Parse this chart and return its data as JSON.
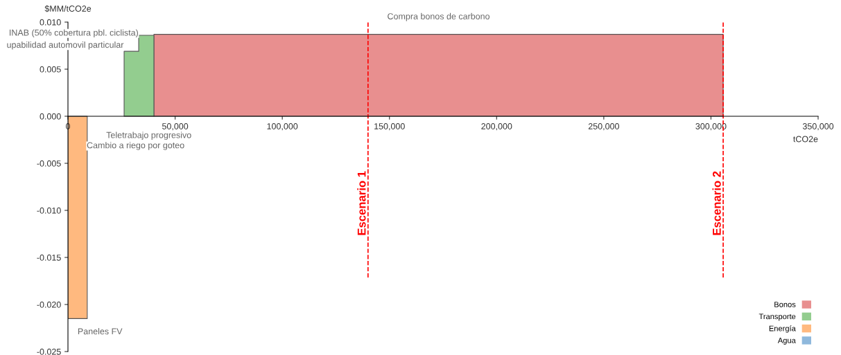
{
  "chart_data": {
    "type": "area",
    "xlabel": "tCO2e",
    "ylabel": "$MM/tCO2e",
    "series": [
      {
        "name": "Bonos",
        "color": "#e88f8f",
        "x": [
          40100,
          305700
        ],
        "values": [
          0.0087,
          0.0087
        ]
      },
      {
        "name": "Transporte",
        "color": "#93cd8f",
        "x": [
          26200,
          33000,
          33000,
          40100
        ],
        "values": [
          0.0069,
          0.0069,
          0.0086,
          0.0086
        ]
      },
      {
        "name": "Energía",
        "color": "#ffb97f",
        "x": [
          0,
          9000
        ],
        "values": [
          -0.0215,
          -0.0215
        ]
      },
      {
        "name": "Agua",
        "color": "#8fb8dc"
      }
    ],
    "xlim": [
      0,
      350000
    ],
    "xticks": [
      0,
      {
        "value": 50000,
        "label": "50,000"
      },
      {
        "value": 100000,
        "label": "100,000"
      },
      {
        "value": 150000,
        "label": "150,000"
      },
      {
        "value": 200000,
        "label": "200,000"
      },
      {
        "value": 250000,
        "label": "250,000"
      },
      {
        "value": 300000,
        "label": "300,000"
      },
      {
        "value": 350000,
        "label": "350,000"
      }
    ],
    "ylim": [
      -0.025,
      0.01
    ],
    "yticks": [
      {
        "value": -0.025,
        "label": "-0.025"
      },
      {
        "value": -0.02,
        "label": "-0.020"
      },
      {
        "value": -0.015,
        "label": "-0.015"
      },
      {
        "value": -0.01,
        "label": "-0.010"
      },
      {
        "value": -0.005,
        "label": "-0.005"
      },
      {
        "value": 0,
        "label": "0.000"
      },
      {
        "value": 0.005,
        "label": "0.005"
      },
      {
        "value": 0.01,
        "label": "0.010"
      }
    ],
    "ref_lines": [
      {
        "axis": "x",
        "value": 140000,
        "label": "Escenario 1",
        "color": "#ff0000",
        "line_style": "dashed"
      },
      {
        "axis": "x",
        "value": 305700,
        "label": "Escenario 2",
        "color": "#ff0000",
        "line_style": "dashed"
      }
    ],
    "annotations": [
      {
        "text": "Compra bonos de carbono",
        "x": 172900,
        "y": 0.0087
      },
      {
        "text": "INAB (50% cobertura pbl. ciclista)",
        "x": 36500,
        "y": 0.0086
      },
      {
        "text": "upabilidad automovil particular",
        "x": 29600,
        "y": 0.0069
      },
      "Teletrabajo progresivo",
      "Cambio a riego por goteo",
      {
        "text": "Paneles FV",
        "x": 4500,
        "y": -0.0215
      }
    ],
    "legend": "bottom right",
    "grid": false
  }
}
